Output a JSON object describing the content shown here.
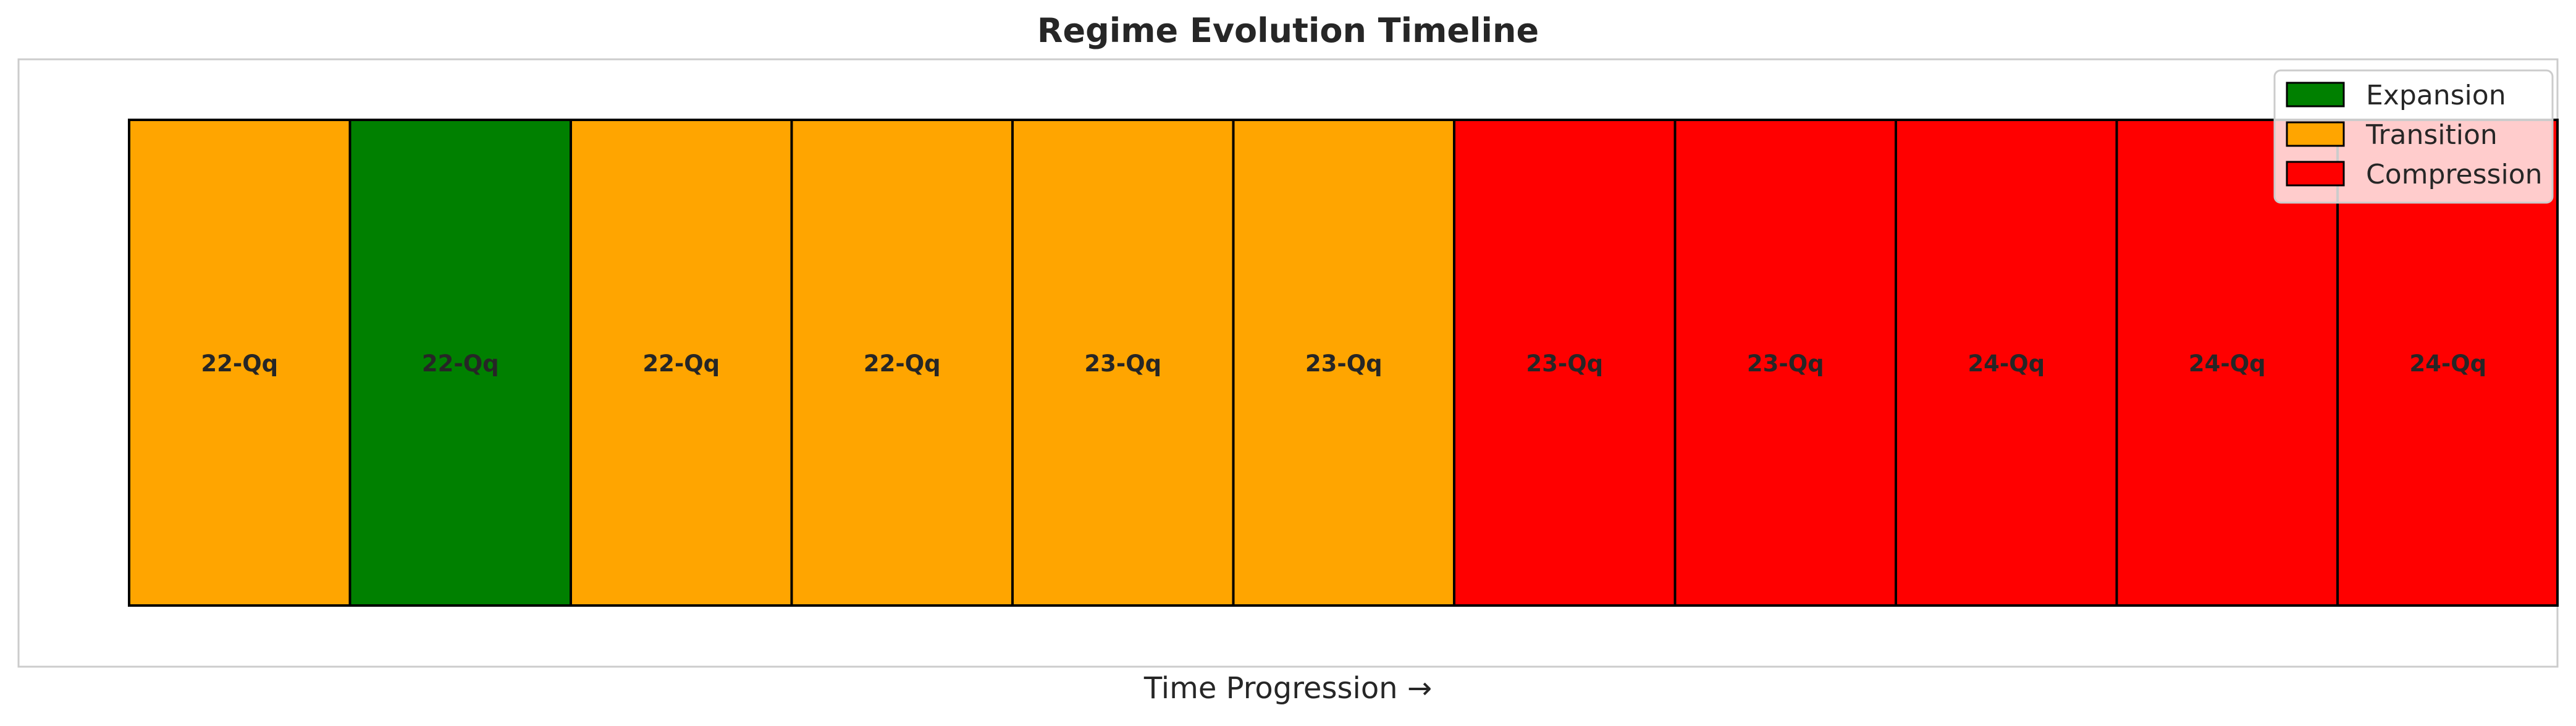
{
  "chart_data": {
    "type": "timeline",
    "title": "Regime Evolution Timeline",
    "xlabel": "Time Progression →",
    "ylabel": "",
    "grid": false,
    "legend_position": "top-right",
    "legend": [
      {
        "label": "Expansion",
        "color": "#008000"
      },
      {
        "label": "Transition",
        "color": "#FFA500"
      },
      {
        "label": "Compression",
        "color": "#FF0000"
      }
    ],
    "periods": [
      {
        "label": "22-Qq",
        "regime": "Transition"
      },
      {
        "label": "22-Qq",
        "regime": "Expansion"
      },
      {
        "label": "22-Qq",
        "regime": "Transition"
      },
      {
        "label": "22-Qq",
        "regime": "Transition"
      },
      {
        "label": "23-Qq",
        "regime": "Transition"
      },
      {
        "label": "23-Qq",
        "regime": "Transition"
      },
      {
        "label": "23-Qq",
        "regime": "Compression"
      },
      {
        "label": "23-Qq",
        "regime": "Compression"
      },
      {
        "label": "24-Qq",
        "regime": "Compression"
      },
      {
        "label": "24-Qq",
        "regime": "Compression"
      },
      {
        "label": "24-Qq",
        "regime": "Compression"
      }
    ]
  }
}
